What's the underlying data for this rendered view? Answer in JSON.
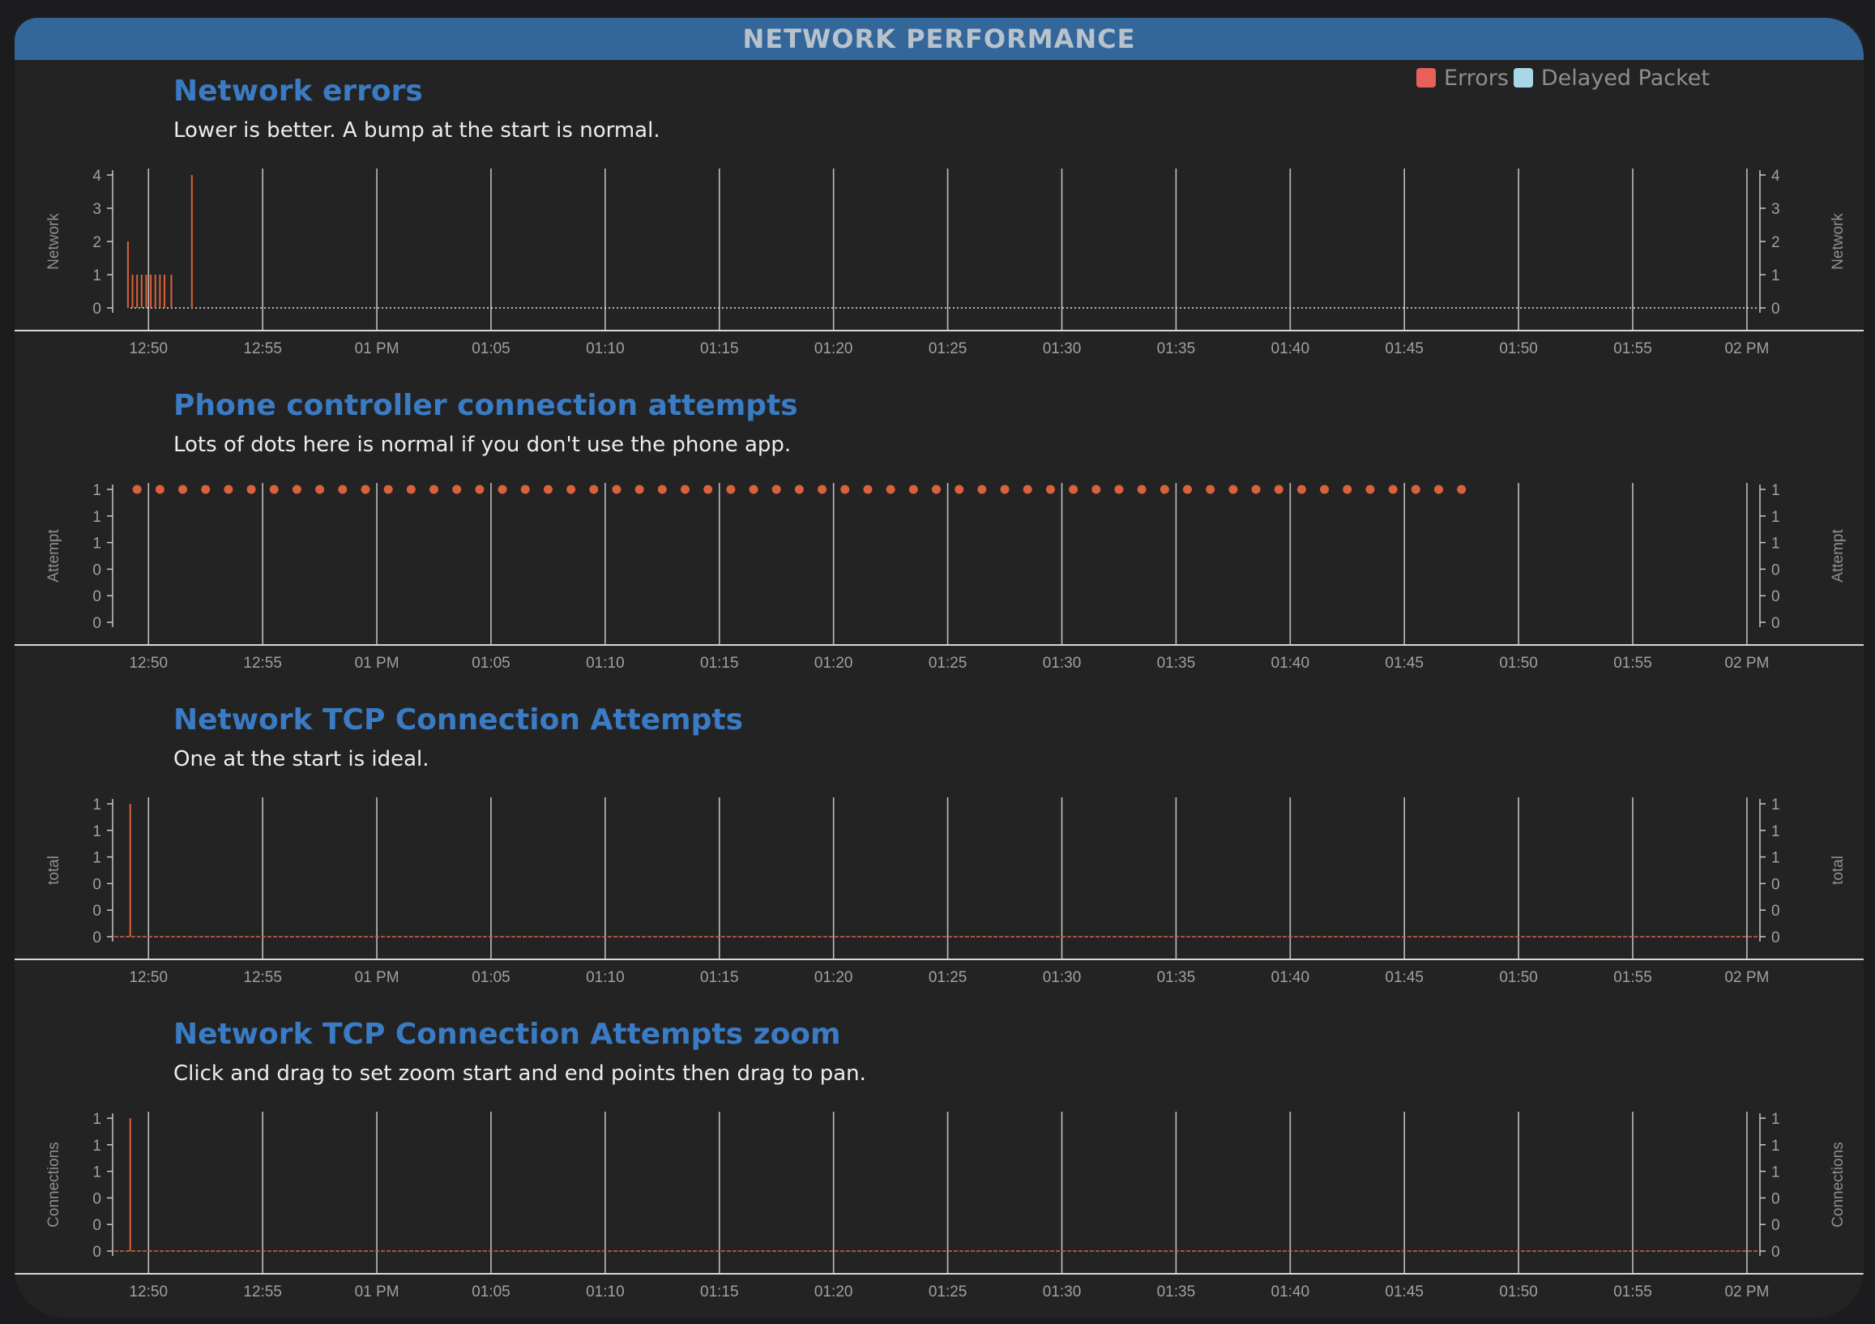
{
  "header": {
    "title": "NETWORK PERFORMANCE"
  },
  "legend": [
    {
      "label": "Errors",
      "color": "#e8605a"
    },
    {
      "label": "Delayed Packet",
      "color": "#a8d8e8"
    }
  ],
  "colors": {
    "accent": "#3a7bc4",
    "series": "#d9623b",
    "grid": "#c0c0c0"
  },
  "time_axis_labels": [
    "12:50",
    "12:55",
    "01 PM",
    "01:05",
    "01:10",
    "01:15",
    "01:20",
    "01:25",
    "01:30",
    "01:35",
    "01:40",
    "01:45",
    "01:50",
    "01:55",
    "02 PM"
  ],
  "charts": [
    {
      "title": "Network errors",
      "description": "Lower is better. A bump at the start is normal.",
      "ylabel": "Network",
      "y_ticks": [
        "4",
        "3",
        "2",
        "1",
        "0"
      ],
      "chart_data": {
        "type": "bar",
        "ylabel": "Network",
        "ylim": [
          0,
          4
        ],
        "x_unit": "minutes after 12:50",
        "xlim": [
          -1.5,
          70.5
        ],
        "series": [
          {
            "x": [
              -0.9,
              -0.7,
              -0.5,
              -0.3,
              -0.1,
              0.1,
              0.3,
              0.5,
              0.7,
              1.0,
              1.9
            ],
            "values": [
              2,
              1,
              1,
              1,
              1,
              1,
              1,
              1,
              1,
              1,
              4
            ]
          }
        ],
        "baseline": "dotted"
      }
    },
    {
      "title": "Phone controller connection attempts",
      "description": "Lots of dots here is normal if you don't use the phone app.",
      "ylabel": "Attempt",
      "y_ticks": [
        "1",
        "1",
        "1",
        "0",
        "0",
        "0"
      ],
      "chart_data": {
        "type": "scatter",
        "ylabel": "Attempt",
        "ylim": [
          0,
          1
        ],
        "x_unit": "minutes after 12:50",
        "xlim": [
          -1.5,
          70.5
        ],
        "dot_series": {
          "start": -0.5,
          "step": 1,
          "count": 59,
          "value": 1
        }
      }
    },
    {
      "title": "Network TCP Connection Attempts",
      "description": "One at the start is ideal.",
      "ylabel": "total",
      "y_ticks": [
        "1",
        "1",
        "1",
        "0",
        "0",
        "0"
      ],
      "chart_data": {
        "type": "bar",
        "ylabel": "total",
        "ylim": [
          0,
          1
        ],
        "x_unit": "minutes after 12:50",
        "xlim": [
          -1.5,
          70.5
        ],
        "series": [
          {
            "x": [
              -0.8
            ],
            "values": [
              1
            ]
          }
        ],
        "baseline": "dashed"
      }
    },
    {
      "title": "Network TCP Connection Attempts zoom",
      "description": "Click and drag to set zoom start and end points then drag to pan.",
      "ylabel": "Connections",
      "y_ticks": [
        "1",
        "1",
        "1",
        "0",
        "0",
        "0"
      ],
      "chart_data": {
        "type": "bar",
        "ylabel": "Connections",
        "ylim": [
          0,
          1
        ],
        "x_unit": "minutes after 12:50",
        "xlim": [
          -1.5,
          70.5
        ],
        "series": [
          {
            "x": [
              -0.8
            ],
            "values": [
              1
            ]
          }
        ],
        "baseline": "dashed"
      }
    }
  ]
}
